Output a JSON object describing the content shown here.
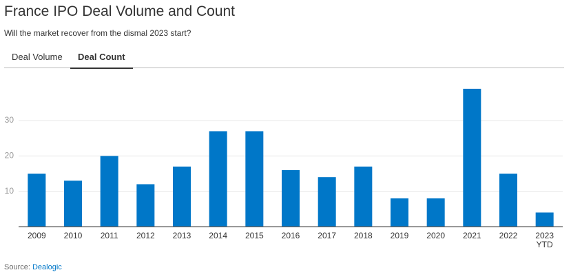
{
  "chart_data": {
    "type": "bar",
    "title": "France IPO Deal Volume and Count",
    "subtitle": "Will the market recover from the dismal 2023 start?",
    "tabs": [
      "Deal Volume",
      "Deal Count"
    ],
    "active_tab": 1,
    "categories": [
      "2009",
      "2010",
      "2011",
      "2012",
      "2013",
      "2014",
      "2015",
      "2016",
      "2017",
      "2018",
      "2019",
      "2020",
      "2021",
      "2022",
      "2023 YTD"
    ],
    "values": [
      15,
      13,
      20,
      12,
      17,
      27,
      27,
      16,
      14,
      17,
      8,
      8,
      39,
      15,
      4
    ],
    "color": "#0077c8",
    "ylim": [
      0,
      42
    ],
    "yticks": [
      10,
      20,
      30
    ],
    "grid": true,
    "source_label": "Source:",
    "source": "Dealogic"
  }
}
